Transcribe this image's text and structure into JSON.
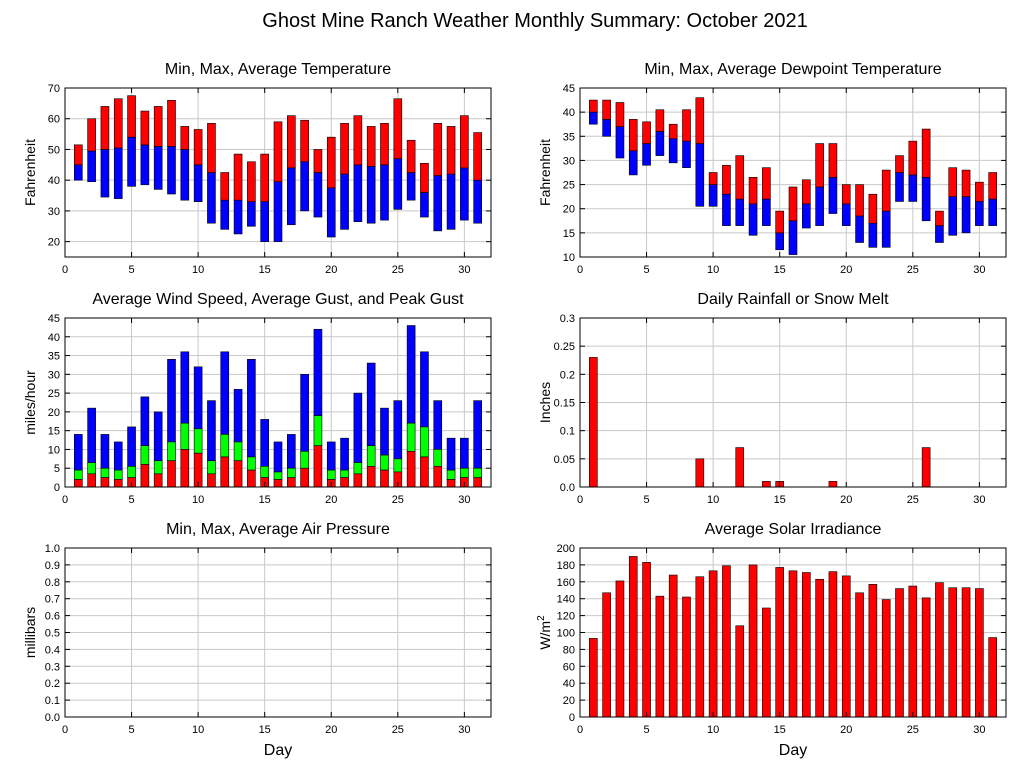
{
  "page": {
    "title": "Ghost Mine Ranch Weather Monthly Summary: October 2021"
  },
  "colors": {
    "red": "#ff0000",
    "blue": "#0000ff",
    "green": "#00ff00",
    "grid": "#c8c8c8",
    "frame": "#000000"
  },
  "chart_data": [
    {
      "id": "temperature",
      "type": "bar",
      "subtype": "floating-range-split",
      "title": "Min, Max, Average Temperature",
      "xlabel": "",
      "ylabel": "Fahrenheit",
      "xlim": [
        0,
        32
      ],
      "xticks": [
        0,
        5,
        10,
        15,
        20,
        25,
        30
      ],
      "ylim": [
        15,
        70
      ],
      "yticks": [
        20,
        30,
        40,
        50,
        60,
        70
      ],
      "grid": true,
      "x": [
        1,
        2,
        3,
        4,
        5,
        6,
        7,
        8,
        9,
        10,
        11,
        12,
        13,
        14,
        15,
        16,
        17,
        18,
        19,
        20,
        21,
        22,
        23,
        24,
        25,
        26,
        27,
        28,
        29,
        30,
        31
      ],
      "min": [
        40,
        39.5,
        34.5,
        34,
        38,
        38.5,
        37,
        35.5,
        33.5,
        33,
        26,
        24,
        22.5,
        25,
        20,
        20,
        25.5,
        30,
        28,
        21.5,
        24,
        26.5,
        26,
        27,
        30.5,
        33.5,
        28,
        23.5,
        24,
        27,
        26
      ],
      "avg": [
        45,
        49.5,
        50,
        50.5,
        54,
        51.5,
        51,
        51,
        50,
        45,
        42.5,
        33.5,
        33.5,
        33,
        33,
        39.5,
        44,
        46,
        42.5,
        37.5,
        42,
        45,
        44.5,
        45,
        47,
        42.5,
        36,
        41.5,
        42,
        44,
        40
      ],
      "max": [
        51.5,
        60,
        64,
        66.5,
        67.5,
        62.5,
        64,
        66,
        57.5,
        56.5,
        58.5,
        42.5,
        48.5,
        46,
        48.5,
        59,
        61,
        59.5,
        50,
        54,
        58.5,
        61,
        57.5,
        58.5,
        66.5,
        53,
        45.5,
        58.5,
        57.5,
        61,
        55.5
      ]
    },
    {
      "id": "dewpoint",
      "type": "bar",
      "subtype": "floating-range-split",
      "title": "Min, Max, Average Dewpoint Temperature",
      "xlabel": "",
      "ylabel": "Fahrenheit",
      "xlim": [
        0,
        32
      ],
      "xticks": [
        0,
        5,
        10,
        15,
        20,
        25,
        30
      ],
      "ylim": [
        10,
        45
      ],
      "yticks": [
        10,
        15,
        20,
        25,
        30,
        35,
        40,
        45
      ],
      "grid": true,
      "x": [
        1,
        2,
        3,
        4,
        5,
        6,
        7,
        8,
        9,
        10,
        11,
        12,
        13,
        14,
        15,
        16,
        17,
        18,
        19,
        20,
        21,
        22,
        23,
        24,
        25,
        26,
        27,
        28,
        29,
        30,
        31
      ],
      "min": [
        37.5,
        35,
        30.5,
        27,
        29,
        31,
        29.5,
        28.5,
        20.5,
        20.5,
        16.5,
        16.5,
        14.5,
        16.5,
        11.5,
        10.5,
        16,
        16.5,
        19,
        16.5,
        13,
        12,
        12,
        21.5,
        21.5,
        17.5,
        13,
        14.5,
        15,
        16.5,
        16.5
      ],
      "avg": [
        40,
        38.5,
        37,
        32,
        33.5,
        36,
        34.5,
        34,
        33.5,
        25,
        23,
        22,
        21,
        22,
        15,
        17.5,
        21,
        24.5,
        26.5,
        21,
        18.5,
        17,
        19.5,
        27.5,
        27,
        26.5,
        16.5,
        22.5,
        22.5,
        21.5,
        22
      ],
      "max": [
        42.5,
        42.5,
        42,
        38.5,
        38,
        40.5,
        37.5,
        40.5,
        43,
        27.5,
        29,
        31,
        26.5,
        28.5,
        19.5,
        24.5,
        26,
        33.5,
        33.5,
        25,
        25,
        23,
        28,
        31,
        34,
        36.5,
        19.5,
        28.5,
        28,
        25.5,
        27.5
      ]
    },
    {
      "id": "wind",
      "type": "bar",
      "subtype": "stacked-overlay",
      "title": "Average Wind Speed, Average Gust, and Peak Gust",
      "xlabel": "",
      "ylabel": "miles/hour",
      "xlim": [
        0,
        32
      ],
      "xticks": [
        0,
        5,
        10,
        15,
        20,
        25,
        30
      ],
      "ylim": [
        0,
        45
      ],
      "yticks": [
        0,
        5,
        10,
        15,
        20,
        25,
        30,
        35,
        40,
        45
      ],
      "grid": true,
      "x": [
        1,
        2,
        3,
        4,
        5,
        6,
        7,
        8,
        9,
        10,
        11,
        12,
        13,
        14,
        15,
        16,
        17,
        18,
        19,
        20,
        21,
        22,
        23,
        24,
        25,
        26,
        27,
        28,
        29,
        30,
        31
      ],
      "series": [
        {
          "name": "Average Wind Speed",
          "color": "red",
          "values": [
            2,
            3.5,
            2.5,
            2,
            2.5,
            6,
            3.5,
            7,
            10,
            9,
            3.5,
            8,
            7,
            4.5,
            2.5,
            2,
            2.5,
            5,
            11,
            2,
            2.5,
            3.5,
            5.5,
            4.5,
            4,
            9.5,
            8,
            5.5,
            2,
            2.5,
            2.5
          ]
        },
        {
          "name": "Average Gust",
          "color": "green",
          "values": [
            4.5,
            6.5,
            5,
            4.5,
            5.5,
            11,
            7,
            12,
            17,
            15.5,
            7,
            14,
            12,
            8,
            5.5,
            4,
            5,
            9.5,
            19,
            4.5,
            4.5,
            6.5,
            11,
            8.5,
            7.5,
            17,
            16,
            10,
            4.5,
            5,
            5
          ]
        },
        {
          "name": "Peak Gust",
          "color": "blue",
          "values": [
            14,
            21,
            14,
            12,
            16,
            24,
            20,
            34,
            36,
            32,
            23,
            36,
            26,
            34,
            18,
            12,
            14,
            30,
            42,
            12,
            13,
            25,
            33,
            21,
            23,
            43,
            36,
            23,
            13,
            13,
            23
          ]
        }
      ]
    },
    {
      "id": "rain",
      "type": "bar",
      "title": "Daily Rainfall or Snow Melt",
      "xlabel": "",
      "ylabel": "Inches",
      "xlim": [
        0,
        32
      ],
      "xticks": [
        0,
        5,
        10,
        15,
        20,
        25,
        30
      ],
      "ylim": [
        0,
        0.3
      ],
      "yticks": [
        "0.0",
        "0.05",
        "0.1",
        "0.15",
        "0.2",
        "0.25",
        "0.3"
      ],
      "grid": true,
      "x": [
        1,
        9,
        12,
        14,
        15,
        19,
        26
      ],
      "values": [
        0.23,
        0.05,
        0.07,
        0.01,
        0.01,
        0.01,
        0.07
      ],
      "color": "red"
    },
    {
      "id": "pressure",
      "type": "bar",
      "title": "Min, Max, Average Air Pressure",
      "xlabel": "Day",
      "ylabel": "millibars",
      "xlim": [
        0,
        32
      ],
      "xticks": [
        0,
        5,
        10,
        15,
        20,
        25,
        30
      ],
      "ylim": [
        0,
        1
      ],
      "yticks": [
        "0.0",
        "0.1",
        "0.2",
        "0.3",
        "0.4",
        "0.5",
        "0.6",
        "0.7",
        "0.8",
        "0.9",
        "1.0"
      ],
      "grid": true,
      "x": [],
      "values": []
    },
    {
      "id": "solar",
      "type": "bar",
      "title": "Average Solar Irradiance",
      "xlabel": "Day",
      "ylabel": "W/m",
      "ylabel_sup": "2",
      "xlim": [
        0,
        32
      ],
      "xticks": [
        0,
        5,
        10,
        15,
        20,
        25,
        30
      ],
      "ylim": [
        0,
        200
      ],
      "yticks": [
        0,
        20,
        40,
        60,
        80,
        100,
        120,
        140,
        160,
        180,
        200
      ],
      "grid": true,
      "x": [
        1,
        2,
        3,
        4,
        5,
        6,
        7,
        8,
        9,
        10,
        11,
        12,
        13,
        14,
        15,
        16,
        17,
        18,
        19,
        20,
        21,
        22,
        23,
        24,
        25,
        26,
        27,
        28,
        29,
        30,
        31
      ],
      "values": [
        93,
        147,
        161,
        190,
        183,
        143,
        168,
        142,
        166,
        173,
        179,
        108,
        180,
        129,
        177,
        173,
        171,
        163,
        172,
        167,
        147,
        157,
        139,
        152,
        155,
        141,
        159,
        153,
        153,
        152,
        94
      ],
      "color": "red"
    }
  ]
}
